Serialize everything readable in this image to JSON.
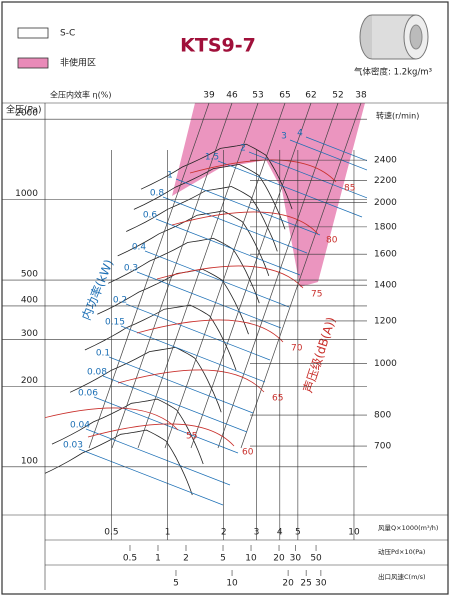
{
  "chart_data": {
    "type": "fan_performance",
    "title": "KTS9-7",
    "legend": [
      {
        "label": "S-C",
        "color": "#ffffff"
      },
      {
        "label": "非使用区",
        "color": "#e98ab8"
      }
    ],
    "density_note": "气体密度: 1.2kg/m³",
    "ylabel": "全压(Pa)",
    "ylog": true,
    "ylim": [
      66,
      2300
    ],
    "yticks": [
      100,
      200,
      300,
      400,
      500,
      1000,
      2000
    ],
    "y2label": "转速(r/min)",
    "y2log": true,
    "y2lim": [
      520,
      3070
    ],
    "y2ticks": [
      700,
      800,
      1000,
      1200,
      1400,
      1600,
      1800,
      2000,
      2200,
      2400
    ],
    "efficiency_label": "全压内效率 η(%)",
    "efficiency_values": [
      39,
      46,
      53,
      65,
      62,
      52,
      38
    ],
    "xlabel": "风量Q×1000(m³/h)",
    "xlim": [
      0.22,
      16.6
    ],
    "xticks": [
      0.5,
      1,
      2,
      3,
      4,
      5,
      10
    ],
    "pd_axis": {
      "label": "动压Pd×10(Pa)",
      "lim": [
        0.061,
        353
      ],
      "ticks": [
        0.5,
        1,
        2,
        5,
        10,
        20,
        30,
        50
      ]
    },
    "c_axis": {
      "label": "出口风速C(m/s)",
      "lim": [
        0.99,
        75
      ],
      "ticks": [
        5,
        10,
        20,
        25,
        30
      ]
    },
    "power_label": "内功率(kW)",
    "power_values": [
      4,
      3,
      2,
      1.5,
      1,
      0.8,
      0.6,
      0.4,
      0.3,
      0.2,
      0.15,
      0.1,
      0.08,
      0.06,
      0.04,
      0.03
    ],
    "noise_label": "声压级(dB(A))",
    "noise_values": [
      85,
      80,
      75,
      70,
      65,
      60,
      55
    ]
  }
}
